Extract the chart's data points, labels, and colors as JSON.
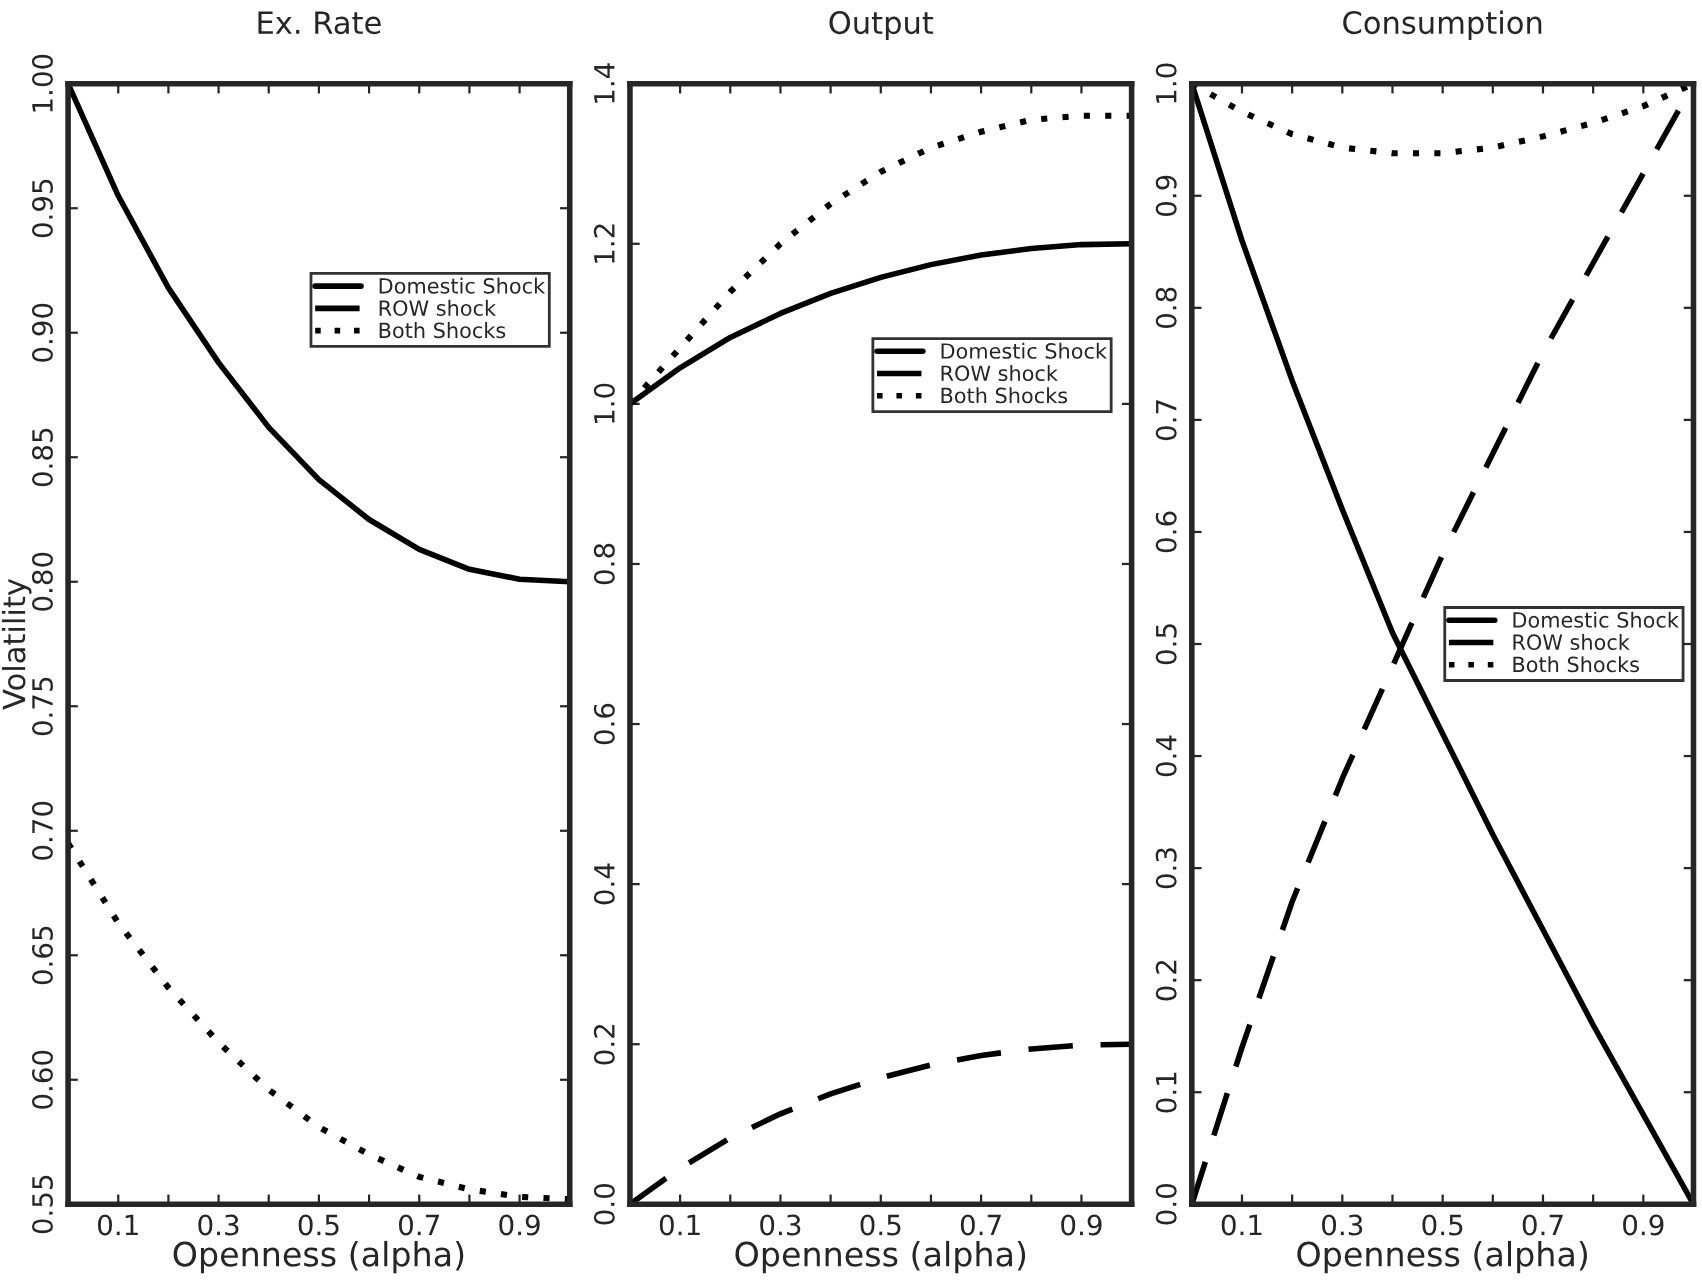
{
  "chart_data": [
    {
      "type": "line",
      "title": "Ex. Rate",
      "xlabel": "Openness (alpha)",
      "ylabel": "Volatility",
      "legend": "top right",
      "x": [
        0,
        0.1,
        0.2,
        0.3,
        0.4,
        0.5,
        0.6,
        0.7,
        0.8,
        0.9,
        1.0
      ],
      "series": [
        {
          "name": "Domestic Shock",
          "color": "#000000",
          "line_style": "solid",
          "values": [
            1.0,
            0.955,
            0.918,
            0.888,
            0.862,
            0.841,
            0.825,
            0.813,
            0.805,
            0.801,
            0.8
          ]
        },
        {
          "name": "ROW shock",
          "color": "#000000",
          "line_style": "dashed",
          "values": [
            null,
            null,
            null,
            null,
            null,
            null,
            null,
            null,
            null,
            null,
            null
          ]
        },
        {
          "name": "Both Shocks",
          "color": "#000000",
          "line_style": "dotted",
          "values": [
            0.695,
            0.663,
            0.637,
            0.615,
            0.596,
            0.581,
            0.57,
            0.561,
            0.556,
            0.553,
            0.552
          ]
        }
      ],
      "xlim": [
        0,
        1
      ],
      "xticks": [
        0.1,
        {
          "value": 0.2,
          "label": null
        },
        0.3,
        {
          "value": 0.4,
          "label": null
        },
        0.5,
        {
          "value": 0.6,
          "label": null
        },
        0.7,
        {
          "value": 0.8,
          "label": null
        },
        0.9
      ],
      "ylim": [
        0.55,
        1.0
      ],
      "yticks": [
        0.55,
        {
          "value": 0.6,
          "label": "0.60"
        },
        0.65,
        {
          "value": 0.7,
          "label": "0.70"
        },
        0.75,
        {
          "value": 0.8,
          "label": "0.80"
        },
        0.85,
        {
          "value": 0.9,
          "label": "0.90"
        },
        0.95,
        {
          "value": 1.0,
          "label": "1.00"
        }
      ]
    },
    {
      "type": "line",
      "title": "Output",
      "xlabel": "Openness (alpha)",
      "legend": "right",
      "x": [
        0,
        0.1,
        0.2,
        0.3,
        0.4,
        0.5,
        0.6,
        0.7,
        0.8,
        0.9,
        1.0
      ],
      "series": [
        {
          "name": "Domestic Shock",
          "color": "#000000",
          "line_style": "solid",
          "values": [
            1.0,
            1.045,
            1.083,
            1.113,
            1.138,
            1.158,
            1.174,
            1.186,
            1.194,
            1.199,
            1.2
          ]
        },
        {
          "name": "ROW shock",
          "color": "#000000",
          "line_style": "dashed",
          "values": [
            0.0,
            0.045,
            0.083,
            0.113,
            0.138,
            0.158,
            0.174,
            0.186,
            0.194,
            0.199,
            0.2
          ]
        },
        {
          "name": "Both Shocks",
          "color": "#000000",
          "line_style": "dotted",
          "values": [
            1.0,
            1.07,
            1.14,
            1.2,
            1.25,
            1.29,
            1.32,
            1.34,
            1.355,
            1.36,
            1.36
          ]
        }
      ],
      "xlim": [
        0,
        1
      ],
      "xticks": [
        0.1,
        {
          "value": 0.2,
          "label": null
        },
        0.3,
        {
          "value": 0.4,
          "label": null
        },
        0.5,
        {
          "value": 0.6,
          "label": null
        },
        0.7,
        {
          "value": 0.8,
          "label": null
        },
        0.9
      ],
      "ylim": [
        0,
        1.4
      ],
      "yticks": [
        {
          "value": 0,
          "label": "0.0"
        },
        0.2,
        0.4,
        0.6,
        0.8,
        {
          "value": 1.0,
          "label": "1.0"
        },
        1.2,
        1.4
      ]
    },
    {
      "type": "line",
      "title": "Consumption",
      "xlabel": "Openness (alpha)",
      "legend": "center right",
      "x": [
        0,
        0.1,
        0.2,
        0.3,
        0.4,
        0.5,
        0.6,
        0.7,
        0.8,
        0.9,
        1.0
      ],
      "series": [
        {
          "name": "Domestic Shock",
          "color": "#000000",
          "line_style": "solid",
          "values": [
            1.0,
            0.86,
            0.735,
            0.62,
            0.51,
            0.42,
            0.33,
            0.245,
            0.16,
            0.08,
            0.0
          ]
        },
        {
          "name": "ROW shock",
          "color": "#000000",
          "line_style": "dashed",
          "values": [
            0.0,
            0.14,
            0.27,
            0.38,
            0.48,
            0.58,
            0.67,
            0.76,
            0.84,
            0.92,
            1.0
          ]
        },
        {
          "name": "Both Shocks",
          "color": "#000000",
          "line_style": "dotted",
          "values": [
            1.0,
            0.975,
            0.955,
            0.943,
            0.938,
            0.938,
            0.943,
            0.953,
            0.965,
            0.98,
            1.0
          ]
        }
      ],
      "xlim": [
        0,
        1
      ],
      "xticks": [
        0.1,
        {
          "value": 0.2,
          "label": null
        },
        0.3,
        {
          "value": 0.4,
          "label": null
        },
        0.5,
        {
          "value": 0.6,
          "label": null
        },
        0.7,
        {
          "value": 0.8,
          "label": null
        },
        0.9
      ],
      "ylim": [
        0,
        1.0
      ],
      "yticks": [
        {
          "value": 0,
          "label": "0.0"
        },
        0.1,
        0.2,
        0.3,
        0.4,
        0.5,
        0.6,
        0.7,
        0.8,
        0.9,
        {
          "value": 1.0,
          "label": "1.0"
        }
      ]
    }
  ]
}
